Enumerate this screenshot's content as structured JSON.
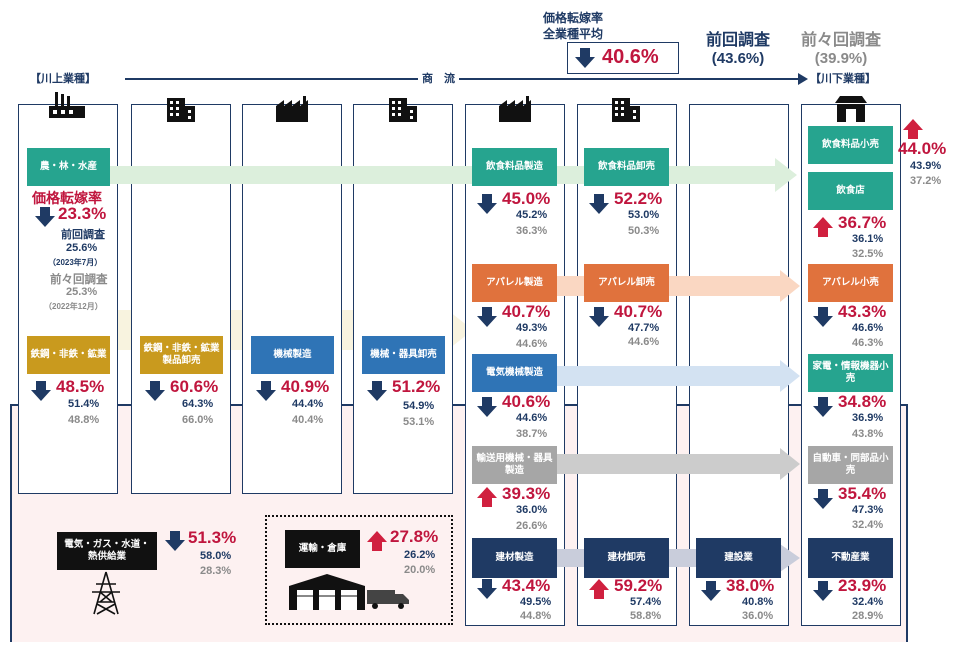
{
  "header": {
    "upstream_label": "【川上業種】",
    "downstream_label": "【川下業種】",
    "flow_label": "商　流",
    "avg_title_line1": "価格転嫁率",
    "avg_title_line2": "全業種平均",
    "avg_rate": "40.6%",
    "prev_title": "前回調査",
    "prev_value": "(43.6%)",
    "prev2_title": "前々回調査",
    "prev2_value": "(39.9%)"
  },
  "legend": {
    "rate_label": "価格転嫁率",
    "rate": "23.3%",
    "prev_title": "前回調査",
    "prev": "25.6%",
    "prev_date": "（2023年7月）",
    "prev2_title": "前々回調査",
    "prev2": "25.3%",
    "prev2_date": "（2022年12月）"
  },
  "sectors": {
    "agri": {
      "label": "農・林・水産"
    },
    "steel": {
      "label": "鉄鋼・非鉄・鉱業",
      "rate": "48.5%",
      "prev": "51.4%",
      "prev2": "48.8%"
    },
    "steel_wholesale": {
      "label": "鉄鋼・非鉄・鉱業製品卸売",
      "rate": "60.6%",
      "prev": "64.3%",
      "prev2": "66.0%"
    },
    "machinery": {
      "label": "機械製造",
      "rate": "40.9%",
      "prev": "44.4%",
      "prev2": "40.4%"
    },
    "machinery_wholesale": {
      "label": "機械・器具卸売",
      "rate": "51.2%",
      "prev": "54.9%",
      "prev2": "53.1%"
    },
    "food_mfg": {
      "label": "飲食料品製造",
      "rate": "45.0%",
      "prev": "45.2%",
      "prev2": "36.3%"
    },
    "food_wholesale": {
      "label": "飲食料品卸売",
      "rate": "52.2%",
      "prev": "53.0%",
      "prev2": "50.3%"
    },
    "food_retail": {
      "label": "飲食料品小売",
      "rate": "44.0%",
      "prev": "43.9%",
      "prev2": "37.2%"
    },
    "restaurant": {
      "label": "飲食店",
      "rate": "36.7%",
      "prev": "36.1%",
      "prev2": "32.5%"
    },
    "apparel_mfg": {
      "label": "アパレル製造",
      "rate": "40.7%",
      "prev": "49.3%",
      "prev2": "44.6%"
    },
    "apparel_wholesale": {
      "label": "アパレル卸売",
      "rate": "40.7%",
      "prev": "47.7%",
      "prev2": "44.6%"
    },
    "apparel_retail": {
      "label": "アパレル小売",
      "rate": "43.3%",
      "prev": "46.6%",
      "prev2": "46.3%"
    },
    "electric_mfg": {
      "label": "電気機械製造",
      "rate": "40.6%",
      "prev": "44.6%",
      "prev2": "38.7%"
    },
    "electric_retail": {
      "label": "家電・情報機器小売",
      "rate": "34.8%",
      "prev": "36.9%",
      "prev2": "43.8%"
    },
    "transport_mfg": {
      "label": "輸送用機械・器具製造",
      "rate": "39.3%",
      "prev": "36.0%",
      "prev2": "26.6%"
    },
    "auto_retail": {
      "label": "自動車・同部品小売",
      "rate": "35.4%",
      "prev": "47.3%",
      "prev2": "32.4%"
    },
    "building_mfg": {
      "label": "建材製造",
      "rate": "43.4%",
      "prev": "49.5%",
      "prev2": "44.8%"
    },
    "building_wholesale": {
      "label": "建材卸売",
      "rate": "59.2%",
      "prev": "57.4%",
      "prev2": "58.8%"
    },
    "construction": {
      "label": "建設業",
      "rate": "38.0%",
      "prev": "40.8%",
      "prev2": "36.0%"
    },
    "real_estate": {
      "label": "不動産業",
      "rate": "23.9%",
      "prev": "32.4%",
      "prev2": "28.9%"
    },
    "utilities": {
      "label": "電気・ガス・水道・熱供給業",
      "rate": "51.3%",
      "prev": "58.0%",
      "prev2": "28.3%"
    },
    "logistics": {
      "label": "運輸・倉庫",
      "rate": "27.8%",
      "prev": "26.2%",
      "prev2": "20.0%"
    }
  },
  "colors": {
    "up": "#d0203f",
    "down": "#1f3a64",
    "rate": "#c0163e"
  }
}
